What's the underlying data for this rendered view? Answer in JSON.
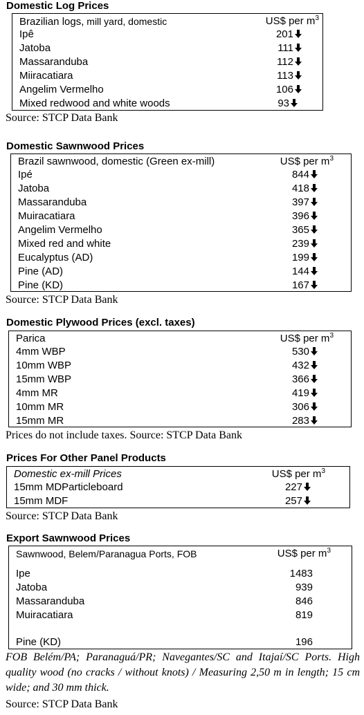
{
  "log": {
    "title": "Domestic Log Prices",
    "header_name_main": "Brazilian logs,",
    "header_name_small": " mill yard, domestic",
    "header_unit": "US$ per m",
    "header_unit_sup": "3",
    "rows": [
      {
        "name": "Ipê",
        "value": "201"
      },
      {
        "name": "Jatoba",
        "value": "111"
      },
      {
        "name": "Massaranduba",
        "value": "112"
      },
      {
        "name": "Miiracatiara",
        "value": "113"
      },
      {
        "name": "Angelim Vermelho",
        "value": "106"
      },
      {
        "name": "Mixed redwood and white woods",
        "value": "93"
      }
    ],
    "source": "Source: STCP Data Bank"
  },
  "sawnwood": {
    "title": "Domestic Sawnwood Prices",
    "header_name": "Brazil sawnwood, domestic (Green ex-mill)",
    "header_unit": "US$ per m",
    "header_unit_sup": "3",
    "rows": [
      {
        "name": "Ipé",
        "value": "844"
      },
      {
        "name": "Jatoba",
        "value": "418"
      },
      {
        "name": "Massaranduba",
        "value": "397"
      },
      {
        "name": "Muiracatiara",
        "value": "396"
      },
      {
        "name": "Angelim Vermelho",
        "value": "365"
      },
      {
        "name": "Mixed red and white",
        "value": "239"
      },
      {
        "name": "Eucalyptus (AD)",
        "value": "199"
      },
      {
        "name": "Pine (AD)",
        "value": "144"
      },
      {
        "name": "Pine (KD)",
        "value": "167"
      }
    ],
    "source": "Source: STCP Data Bank"
  },
  "plywood": {
    "title": "Domestic Plywood Prices (excl. taxes)",
    "header_name": "Parica",
    "header_unit": "US$ per m",
    "header_unit_sup": "3",
    "rows": [
      {
        "name": "4mm WBP",
        "value": "530"
      },
      {
        "name": "10mm WBP",
        "value": "432"
      },
      {
        "name": "15mm WBP",
        "value": "366"
      },
      {
        "name": "4mm MR",
        "value": "419"
      },
      {
        "name": "10mm MR",
        "value": "306"
      },
      {
        "name": "15mm MR",
        "value": "283"
      }
    ],
    "source": "Prices do not include taxes. Source: STCP Data Bank"
  },
  "panel": {
    "title": "Prices For Other Panel Products",
    "header_name": "Domestic ex-mill Prices",
    "header_unit": "US$ per m",
    "header_unit_sup": "3",
    "rows": [
      {
        "name": "15mm MDParticleboard",
        "value": "227"
      },
      {
        "name": "15mm MDF",
        "value": "257"
      }
    ],
    "source": "Source: STCP Data Bank"
  },
  "export": {
    "title": "Export Sawnwood Prices",
    "header_name": "Sawnwood, Belem/Paranagua Ports, FOB",
    "header_unit": "US$ per m",
    "header_unit_sup": "3",
    "rows": [
      {
        "name": "Ipe",
        "value": "1483"
      },
      {
        "name": "Jatoba",
        "value": "939"
      },
      {
        "name": "Massaranduba",
        "value": "846"
      },
      {
        "name": "Muiracatiara",
        "value": "819"
      },
      {
        "name": "Pine (KD)",
        "value": "196"
      }
    ],
    "note": "FOB Belém/PA; Paranaguá/PR; Navegantes/SC and Itajaí/SC Ports. High quality wood (no cracks / without knots) / Measuring 2,50 m in length; 15 cm wide; and 30 mm thick.",
    "source": "Source: STCP Data Bank"
  },
  "trend_icon": "down-arrow-icon"
}
